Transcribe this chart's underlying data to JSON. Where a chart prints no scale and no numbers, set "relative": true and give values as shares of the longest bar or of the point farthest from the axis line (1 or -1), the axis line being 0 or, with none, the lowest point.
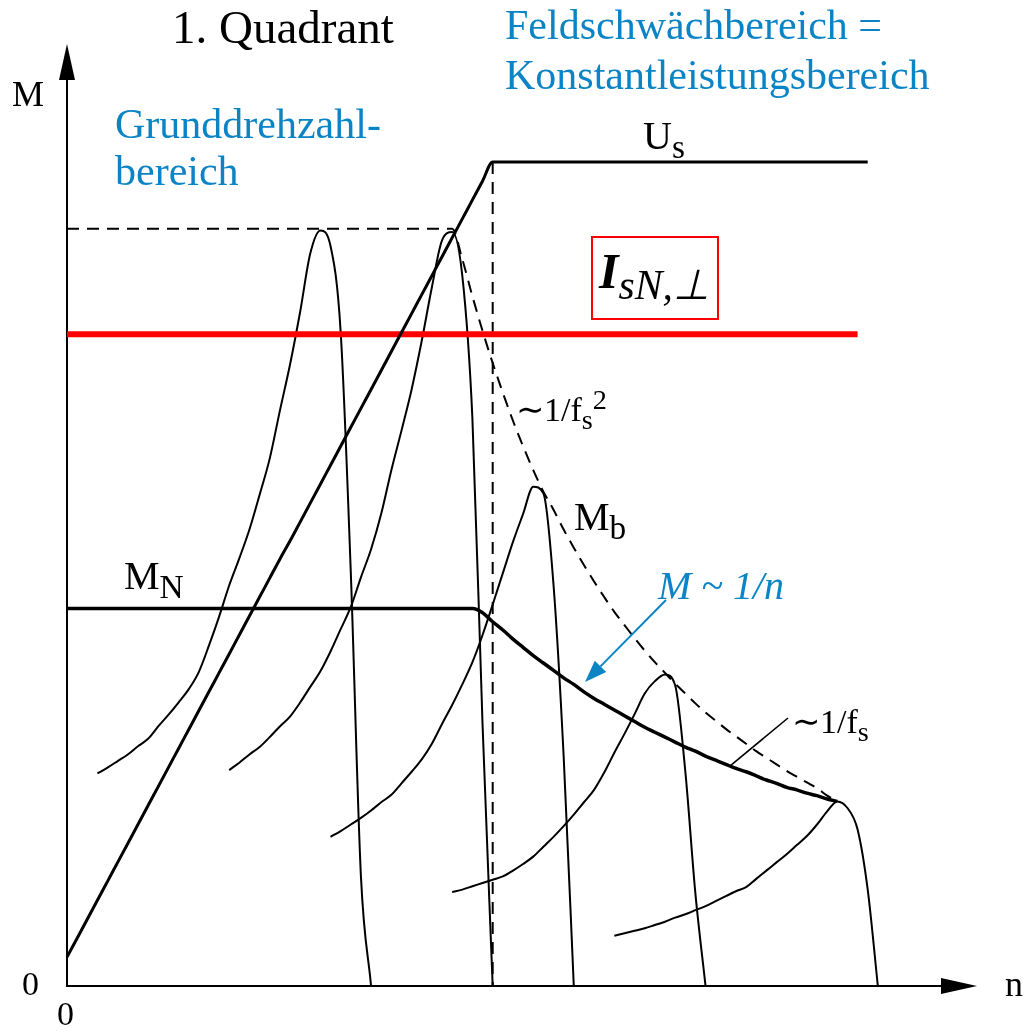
{
  "chart_data": {
    "type": "line",
    "title": "1. Quadrant",
    "xlabel": "n",
    "ylabel": "M",
    "relative": true,
    "marker": "none",
    "categories": [
      null,
      null,
      null,
      null,
      null,
      null,
      null,
      null,
      null,
      null,
      null,
      null,
      null,
      null,
      null,
      null,
      null,
      null,
      null,
      null,
      null,
      null,
      null,
      null,
      null,
      null,
      null,
      null,
      null,
      null,
      null,
      null,
      null,
      null,
      null,
      null,
      null,
      null,
      null,
      null,
      null,
      null,
      null,
      null,
      null,
      null,
      null,
      null,
      null,
      null,
      null,
      null,
      null,
      null,
      null,
      null,
      null,
      null,
      null,
      null,
      null,
      null,
      null,
      null,
      null,
      null,
      null,
      null,
      null,
      null,
      null,
      null,
      null,
      null,
      null,
      null,
      null,
      null,
      null,
      null,
      null,
      null,
      null,
      null,
      null,
      null,
      null,
      null
    ],
    "series": [
      {
        "name": "U$_{s}$",
        "color": "#000000",
        "values": [
          0.035,
          0.058,
          0.081,
          0.104,
          0.127,
          0.15,
          0.173,
          0.196,
          0.219,
          0.242,
          0.265,
          0.288,
          0.311,
          0.334,
          0.357,
          0.38,
          0.403,
          0.426,
          0.449,
          0.472,
          0.495,
          0.518,
          0.54,
          0.563,
          0.586,
          0.609,
          0.632,
          0.655,
          0.678,
          0.701,
          0.724,
          0.747,
          0.77,
          0.793,
          0.816,
          0.839,
          0.862,
          0.885,
          0.908,
          0.931,
          0.954,
          0.977,
          1,
          1,
          1,
          1,
          1,
          1,
          1,
          1,
          1,
          1,
          1,
          1,
          1,
          1,
          1,
          1,
          1,
          1,
          1,
          1,
          1,
          1,
          1,
          1,
          1,
          1,
          1,
          1,
          1,
          1,
          1,
          1,
          1,
          1,
          1,
          1,
          1,
          1,
          null,
          null,
          null,
          null,
          null,
          null,
          null,
          null
        ]
      },
      {
        "name": "M$_{N}$",
        "color": "#000000",
        "values": [
          0.458,
          0.458,
          0.458,
          0.458,
          0.458,
          0.458,
          0.458,
          0.458,
          0.458,
          0.458,
          0.458,
          0.458,
          0.458,
          0.458,
          0.458,
          0.458,
          0.458,
          0.458,
          0.458,
          0.458,
          0.458,
          0.458,
          0.458,
          0.458,
          0.458,
          0.458,
          0.458,
          0.458,
          0.458,
          0.458,
          0.458,
          0.458,
          0.458,
          0.458,
          0.458,
          0.458,
          0.458,
          0.458,
          0.458,
          0.458,
          0.458,
          0.453,
          0.442,
          0.432,
          0.421,
          0.411,
          0.401,
          0.392,
          0.383,
          0.374,
          0.366,
          0.357,
          0.349,
          0.342,
          0.335,
          0.328,
          0.321,
          0.314,
          0.308,
          0.302,
          0.296,
          0.29,
          0.285,
          0.279,
          0.274,
          0.269,
          0.264,
          0.26,
          0.255,
          0.25,
          0.246,
          0.241,
          0.238,
          0.234,
          0.231,
          0.227,
          0.224,
          null,
          null,
          null,
          null,
          null,
          null,
          null,
          null,
          null,
          null,
          null
        ]
      },
      {
        "name": "I$_{sN,⊥}$",
        "color": "#ff0000",
        "values": [
          0.791,
          0.791,
          0.791,
          0.791,
          0.791,
          0.791,
          0.791,
          0.791,
          0.791,
          0.791,
          0.791,
          0.791,
          0.791,
          0.791,
          0.791,
          0.791,
          0.791,
          0.791,
          0.791,
          0.791,
          0.791,
          0.791,
          0.791,
          0.791,
          0.791,
          0.791,
          0.791,
          0.791,
          0.791,
          0.791,
          0.791,
          0.791,
          0.791,
          0.791,
          0.791,
          0.791,
          0.791,
          0.791,
          0.791,
          0.791,
          0.791,
          0.791,
          0.791,
          0.791,
          0.791,
          0.791,
          0.791,
          0.791,
          0.791,
          0.791,
          0.791,
          0.791,
          0.791,
          0.791,
          0.791,
          0.791,
          0.791,
          0.791,
          0.791,
          0.791,
          0.791,
          0.791,
          0.791,
          0.791,
          0.791,
          0.791,
          0.791,
          0.791,
          0.791,
          0.791,
          0.791,
          0.791,
          0.791,
          0.791,
          0.791,
          0.791,
          0.791,
          0.791,
          0.791,
          null,
          null,
          null,
          null,
          null,
          null,
          null,
          null,
          null
        ]
      },
      {
        "name": "M$_{b}$",
        "color": "#000000",
        "line_style": "dashed",
        "values": [
          0.919,
          0.919,
          0.919,
          0.919,
          0.919,
          0.919,
          0.919,
          0.919,
          0.919,
          0.919,
          0.919,
          0.919,
          0.919,
          0.919,
          0.919,
          0.919,
          0.919,
          0.919,
          0.919,
          0.919,
          0.919,
          0.919,
          0.919,
          0.919,
          0.919,
          0.919,
          0.919,
          0.919,
          0.919,
          0.919,
          0.919,
          0.919,
          0.919,
          0.919,
          0.919,
          0.919,
          0.919,
          0.919,
          0.919,
          0.882,
          0.837,
          0.795,
          0.756,
          0.72,
          0.686,
          0.655,
          0.626,
          0.6,
          0.578,
          0.554,
          0.532,
          0.511,
          0.491,
          0.472,
          0.454,
          0.438,
          0.422,
          0.407,
          0.393,
          0.38,
          0.367,
          0.355,
          0.343,
          0.332,
          0.322,
          0.312,
          0.303,
          0.294,
          0.285,
          0.277,
          0.269,
          0.261,
          0.254,
          0.247,
          0.24,
          0.231,
          0.224,
          null,
          null,
          null,
          null,
          null,
          null,
          null,
          null,
          null,
          null,
          null
        ]
      },
      {
        "type": "step",
        "color": "#000000",
        "line_style": "dashed",
        "values": [
          null,
          null,
          null,
          null,
          null,
          null,
          null,
          null,
          null,
          null,
          null,
          null,
          null,
          null,
          null,
          null,
          null,
          null,
          null,
          null,
          null,
          null,
          null,
          null,
          null,
          null,
          null,
          null,
          null,
          null,
          null,
          null,
          null,
          null,
          null,
          null,
          null,
          null,
          null,
          null,
          null,
          null,
          1,
          0,
          null,
          null,
          null,
          null,
          null,
          null,
          null,
          null,
          null,
          null,
          null,
          null,
          null,
          null,
          null,
          null,
          null,
          null,
          null,
          null,
          null,
          null,
          null,
          null,
          null,
          null,
          null,
          null,
          null,
          null,
          null,
          null,
          null,
          null,
          null,
          null,
          null,
          null,
          null,
          null,
          null,
          null,
          null,
          null
        ]
      },
      {
        "color": "#000000",
        "values": [
          null,
          null,
          null,
          0.258,
          0.265,
          0.273,
          0.281,
          0.291,
          0.3,
          0.315,
          0.329,
          0.344,
          0.36,
          0.381,
          0.413,
          0.448,
          0.486,
          0.519,
          0.554,
          0.596,
          0.64,
          0.698,
          0.754,
          0.818,
          0.889,
          0.917,
          0.898,
          0.794,
          0.502,
          0.133,
          0,
          null,
          null,
          null,
          null,
          null,
          null,
          null,
          null,
          null,
          null,
          null,
          null,
          null,
          null,
          null,
          null,
          null,
          null,
          null,
          null,
          null,
          null,
          null,
          null,
          null,
          null,
          null,
          null,
          null,
          null,
          null,
          null,
          null,
          null,
          null,
          null,
          null,
          null,
          null,
          null,
          null,
          null,
          null,
          null,
          null,
          null,
          null,
          null,
          null,
          null,
          null,
          null,
          null,
          null,
          null,
          null,
          null
        ]
      },
      {
        "color": "#000000",
        "values": [
          null,
          null,
          null,
          null,
          null,
          null,
          null,
          null,
          null,
          null,
          null,
          null,
          null,
          null,
          null,
          null,
          0.262,
          0.271,
          0.281,
          0.29,
          0.302,
          0.315,
          0.327,
          0.344,
          0.363,
          0.382,
          0.406,
          0.433,
          0.46,
          0.496,
          0.53,
          0.573,
          0.626,
          0.674,
          0.724,
          0.783,
          0.848,
          0.905,
          0.915,
          0.862,
          0.688,
          0.317,
          0,
          null,
          null,
          null,
          null,
          null,
          null,
          null,
          null,
          null,
          null,
          null,
          null,
          null,
          null,
          null,
          null,
          null,
          null,
          null,
          null,
          null,
          null,
          null,
          null,
          null,
          null,
          null,
          null,
          null,
          null,
          null,
          null,
          null,
          null,
          null,
          null,
          null,
          null,
          null,
          null,
          null,
          null,
          null,
          null,
          null
        ]
      },
      {
        "color": "#000000",
        "values": [
          null,
          null,
          null,
          null,
          null,
          null,
          null,
          null,
          null,
          null,
          null,
          null,
          null,
          null,
          null,
          null,
          null,
          null,
          null,
          null,
          null,
          null,
          null,
          null,
          null,
          null,
          0.181,
          0.188,
          0.196,
          0.204,
          0.213,
          0.223,
          0.232,
          0.246,
          0.26,
          0.275,
          0.294,
          0.318,
          0.341,
          0.366,
          0.393,
          0.426,
          0.463,
          0.501,
          0.539,
          0.573,
          0.606,
          0.598,
          0.487,
          0.279,
          0,
          null,
          null,
          null,
          null,
          null,
          null,
          null,
          null,
          null,
          null,
          null,
          null,
          null,
          null,
          null,
          null,
          null,
          null,
          null,
          null,
          null,
          null,
          null,
          null,
          null,
          null,
          null,
          null,
          null,
          null,
          null,
          null,
          null,
          null,
          null,
          null,
          null
        ]
      },
      {
        "color": "#000000",
        "values": [
          null,
          null,
          null,
          null,
          null,
          null,
          null,
          null,
          null,
          null,
          null,
          null,
          null,
          null,
          null,
          null,
          null,
          null,
          null,
          null,
          null,
          null,
          null,
          null,
          null,
          null,
          null,
          null,
          null,
          null,
          null,
          null,
          null,
          null,
          null,
          null,
          null,
          null,
          0.114,
          0.117,
          0.121,
          0.125,
          0.129,
          0.133,
          0.14,
          0.148,
          0.157,
          0.169,
          0.181,
          0.194,
          0.208,
          0.223,
          0.238,
          0.259,
          0.283,
          0.306,
          0.33,
          0.355,
          0.37,
          0.378,
          0.365,
          0.261,
          0.112,
          0,
          null,
          null,
          null,
          null,
          null,
          null,
          null,
          null,
          null,
          null,
          null,
          null,
          null,
          null,
          null,
          null,
          null,
          null,
          null,
          null,
          null,
          null,
          null,
          null
        ]
      },
      {
        "color": "#000000",
        "values": [
          null,
          null,
          null,
          null,
          null,
          null,
          null,
          null,
          null,
          null,
          null,
          null,
          null,
          null,
          null,
          null,
          null,
          null,
          null,
          null,
          null,
          null,
          null,
          null,
          null,
          null,
          null,
          null,
          null,
          null,
          null,
          null,
          null,
          null,
          null,
          null,
          null,
          null,
          null,
          null,
          null,
          null,
          null,
          null,
          null,
          null,
          null,
          null,
          null,
          null,
          null,
          null,
          null,
          null,
          0.061,
          0.064,
          0.067,
          0.07,
          0.074,
          0.078,
          0.083,
          0.087,
          0.092,
          0.097,
          0.103,
          0.109,
          0.115,
          0.12,
          0.13,
          0.14,
          0.15,
          0.16,
          0.171,
          0.182,
          0.196,
          0.212,
          0.224,
          0.216,
          0.19,
          0.117,
          0,
          null,
          null,
          null,
          null,
          null,
          null,
          null
        ]
      }
    ],
    "annotations": [
      "Grunddrehzahl-bereich",
      "Feldschwächbereich = Konstantleistungsbereich",
      "∼1/f$_{s}$$^{2}$",
      "∼1/f$_{s}$",
      "M ~ 1/n",
      "0",
      "0"
    ]
  }
}
